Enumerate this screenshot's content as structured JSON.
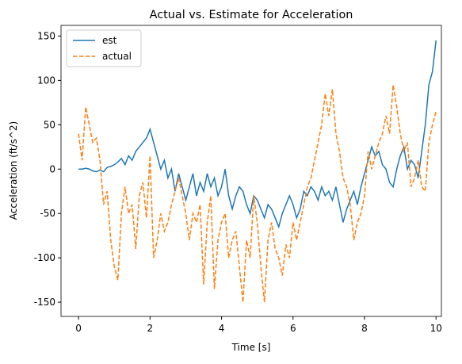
{
  "chart_data": {
    "type": "line",
    "title": "Actual vs. Estimate for Acceleration",
    "x_label": "Time [s]",
    "y_label": "Acceleration (ft/s^2)",
    "x": [
      0,
      0.1,
      0.2,
      0.3,
      0.4,
      0.5,
      0.6,
      0.7,
      0.8,
      0.9,
      1,
      1.1,
      1.2,
      1.3,
      1.4,
      1.5,
      1.6,
      1.7,
      1.8,
      1.9,
      2,
      2.1,
      2.2,
      2.3,
      2.4,
      2.5,
      2.6,
      2.7,
      2.8,
      2.9,
      3,
      3.1,
      3.2,
      3.3,
      3.4,
      3.5,
      3.6,
      3.7,
      3.8,
      3.9,
      4,
      4.1,
      4.2,
      4.3,
      4.4,
      4.5,
      4.6,
      4.7,
      4.8,
      4.9,
      5,
      5.1,
      5.2,
      5.3,
      5.4,
      5.5,
      5.6,
      5.7,
      5.8,
      5.9,
      6,
      6.1,
      6.2,
      6.3,
      6.4,
      6.5,
      6.6,
      6.7,
      6.8,
      6.9,
      7,
      7.1,
      7.2,
      7.3,
      7.4,
      7.5,
      7.6,
      7.7,
      7.8,
      7.9,
      8,
      8.1,
      8.2,
      8.3,
      8.4,
      8.5,
      8.6,
      8.7,
      8.8,
      8.9,
      9,
      9.1,
      9.2,
      9.3,
      9.4,
      9.5,
      9.6,
      9.7,
      9.8,
      9.9,
      10
    ],
    "series": [
      {
        "name": "est",
        "color": "#1f77b4",
        "style": "solid",
        "values": [
          0,
          0,
          1,
          0,
          -2,
          -3,
          -1,
          -3,
          2,
          3,
          5,
          8,
          12,
          5,
          15,
          10,
          20,
          25,
          30,
          35,
          45,
          30,
          15,
          0,
          10,
          -10,
          0,
          -25,
          -5,
          -20,
          -35,
          -20,
          -5,
          -30,
          -15,
          -25,
          -5,
          -20,
          -10,
          -30,
          -20,
          0,
          -30,
          -45,
          -30,
          -20,
          -25,
          -40,
          -50,
          -30,
          -35,
          -45,
          -55,
          -40,
          -45,
          -55,
          -65,
          -50,
          -40,
          -30,
          -40,
          -55,
          -45,
          -25,
          -30,
          -20,
          -25,
          -35,
          -20,
          -30,
          -25,
          -35,
          -20,
          -40,
          -60,
          -45,
          -35,
          -25,
          -40,
          -20,
          -5,
          10,
          25,
          15,
          20,
          5,
          0,
          -15,
          -20,
          0,
          15,
          25,
          0,
          10,
          5,
          -10,
          20,
          50,
          95,
          110,
          145
        ]
      },
      {
        "name": "actual",
        "color": "#ff7f0e",
        "style": "dashed",
        "values": [
          40,
          10,
          70,
          50,
          30,
          35,
          10,
          -40,
          -25,
          -80,
          -110,
          -125,
          -50,
          -20,
          -50,
          -40,
          -90,
          -30,
          -15,
          -55,
          15,
          -100,
          -80,
          -50,
          -70,
          -60,
          -40,
          -25,
          -10,
          -30,
          -50,
          -80,
          -50,
          -60,
          -40,
          -130,
          -60,
          -30,
          -135,
          -80,
          -60,
          -50,
          -100,
          -80,
          -70,
          -110,
          -150,
          -80,
          -100,
          -30,
          -60,
          -110,
          -150,
          -80,
          -60,
          -90,
          -100,
          -120,
          -85,
          -100,
          -60,
          -80,
          -60,
          -40,
          -20,
          -10,
          10,
          30,
          50,
          85,
          60,
          90,
          40,
          20,
          -10,
          -20,
          -40,
          -80,
          -60,
          -50,
          -30,
          20,
          0,
          15,
          30,
          40,
          60,
          40,
          95,
          70,
          40,
          20,
          30,
          -20,
          -10,
          10,
          -20,
          -25,
          30,
          50,
          65
        ]
      }
    ],
    "xlim": [
      -0.49,
      10.15
    ],
    "xticks": [
      0,
      2,
      4,
      6,
      8,
      10
    ],
    "ylim": [
      -166,
      162
    ],
    "yticks": [
      -150,
      -100,
      -50,
      0,
      50,
      100,
      150
    ],
    "legend": "upper left"
  }
}
